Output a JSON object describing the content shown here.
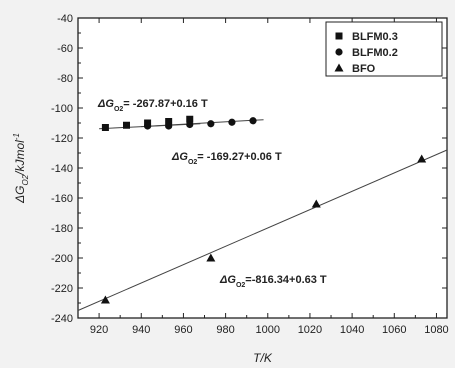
{
  "chart_data": {
    "type": "scatter",
    "title": "",
    "xlabel": "T/K",
    "ylabel": "ΔḠO2/kJmol-1",
    "ylabel_main": "ΔG",
    "ylabel_sub": "O2",
    "ylabel_unit": "/kJmol",
    "ylabel_sup": "-1",
    "xlim": [
      910,
      1085
    ],
    "ylim": [
      -240,
      -40
    ],
    "x_ticks": [
      920,
      940,
      960,
      980,
      1000,
      1020,
      1040,
      1060,
      1080
    ],
    "y_ticks": [
      -40,
      -60,
      -80,
      -100,
      -120,
      -140,
      -160,
      -180,
      -200,
      -220,
      -240
    ],
    "grid": false,
    "legend_position": "top-right",
    "series": [
      {
        "name": "BLFM0.3",
        "marker": "square",
        "x": [
          923,
          933,
          943,
          953,
          963
        ],
        "y": [
          -113,
          -111.5,
          -110,
          -109,
          -107.5
        ]
      },
      {
        "name": "BLFM0.2",
        "marker": "circle",
        "x": [
          943,
          953,
          963,
          973,
          983,
          993
        ],
        "y": [
          -112,
          -112,
          -111,
          -110.5,
          -109.5,
          -108.5
        ]
      },
      {
        "name": "BFO",
        "marker": "triangle",
        "x": [
          923,
          973,
          1023,
          1073
        ],
        "y": [
          -228,
          -200,
          -164,
          -134
        ]
      }
    ],
    "fit_lines": [
      {
        "series": "BLFM0.3",
        "x": [
          920,
          968
        ],
        "y": [
          -113.8,
          -110.5
        ]
      },
      {
        "series": "BLFM0.2",
        "x": [
          940,
          998
        ],
        "y": [
          -112.4,
          -107.8
        ]
      },
      {
        "series": "BFO",
        "x": [
          910,
          1085
        ],
        "y": [
          -235.0,
          -128.0
        ]
      }
    ],
    "annotations": [
      {
        "main": "ΔG",
        "sub": "O2",
        "text": "= -267.87+0.16 T"
      },
      {
        "main": "ΔG",
        "sub": "O2",
        "text": "= -169.27+0.06 T"
      },
      {
        "main": "ΔG",
        "sub": "O2",
        "text": "=-816.34+0.63 T"
      }
    ]
  }
}
